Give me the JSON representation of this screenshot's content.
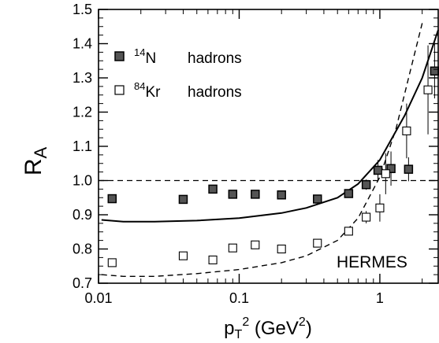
{
  "chart_data": {
    "type": "scatter",
    "x_scale": "log",
    "xlim": [
      0.01,
      2.6
    ],
    "ylim": [
      0.7,
      1.5
    ],
    "x_ticks": [
      0.01,
      0.1,
      1
    ],
    "x_tick_labels": [
      "0.01",
      "0.1",
      "1"
    ],
    "y_ticks": [
      0.7,
      0.8,
      0.9,
      1.0,
      1.1,
      1.2,
      1.3,
      1.4,
      1.5
    ],
    "y_tick_labels": [
      "0.7",
      "0.8",
      "0.9",
      "1.0",
      "1.1",
      "1.2",
      "1.3",
      "1.4",
      "1.5"
    ],
    "xlabel": {
      "base": "p",
      "sub": "T",
      "sup": "2",
      "unit_pre": " (GeV",
      "unit_sup": "2",
      "unit_post": ")"
    },
    "ylabel": {
      "base": "R",
      "sub": "A"
    },
    "reference_line": 1.0,
    "annotation": "HERMES",
    "legend": [
      {
        "mass": "14",
        "element": "N",
        "label": "hadrons",
        "marker": "filled-square"
      },
      {
        "mass": "84",
        "element": "Kr",
        "label": "hadrons",
        "marker": "open-square"
      }
    ],
    "series": [
      {
        "name": "14N hadrons",
        "marker": "filled-square",
        "points": [
          {
            "x": 0.0125,
            "y": 0.947,
            "err": 0.008
          },
          {
            "x": 0.04,
            "y": 0.945,
            "err": 0.008
          },
          {
            "x": 0.065,
            "y": 0.975,
            "err": 0.008
          },
          {
            "x": 0.09,
            "y": 0.96,
            "err": 0.008
          },
          {
            "x": 0.13,
            "y": 0.96,
            "err": 0.008
          },
          {
            "x": 0.2,
            "y": 0.958,
            "err": 0.008
          },
          {
            "x": 0.36,
            "y": 0.946,
            "err": 0.009
          },
          {
            "x": 0.6,
            "y": 0.962,
            "err": 0.01
          },
          {
            "x": 0.8,
            "y": 0.988,
            "err": 0.015
          },
          {
            "x": 0.97,
            "y": 1.03,
            "err": 0.03
          },
          {
            "x": 1.2,
            "y": 1.035,
            "err": 0.05
          },
          {
            "x": 1.6,
            "y": 1.033,
            "err": 0.035
          },
          {
            "x": 2.45,
            "y": 1.32,
            "err": 0.08
          }
        ]
      },
      {
        "name": "84Kr hadrons",
        "marker": "open-square",
        "points": [
          {
            "x": 0.0125,
            "y": 0.76,
            "err": 0.008
          },
          {
            "x": 0.04,
            "y": 0.78,
            "err": 0.008
          },
          {
            "x": 0.065,
            "y": 0.768,
            "err": 0.008
          },
          {
            "x": 0.09,
            "y": 0.803,
            "err": 0.008
          },
          {
            "x": 0.13,
            "y": 0.812,
            "err": 0.008
          },
          {
            "x": 0.2,
            "y": 0.8,
            "err": 0.008
          },
          {
            "x": 0.36,
            "y": 0.817,
            "err": 0.009
          },
          {
            "x": 0.6,
            "y": 0.852,
            "err": 0.012
          },
          {
            "x": 0.8,
            "y": 0.893,
            "err": 0.018
          },
          {
            "x": 1.0,
            "y": 0.92,
            "err": 0.04
          },
          {
            "x": 1.1,
            "y": 1.02,
            "err": 0.06
          },
          {
            "x": 1.55,
            "y": 1.145,
            "err": 0.08
          },
          {
            "x": 2.2,
            "y": 1.265,
            "err": 0.13
          }
        ]
      }
    ],
    "curves": [
      {
        "style": "solid",
        "points": [
          [
            0.0105,
            0.885
          ],
          [
            0.015,
            0.88
          ],
          [
            0.025,
            0.88
          ],
          [
            0.05,
            0.883
          ],
          [
            0.1,
            0.89
          ],
          [
            0.2,
            0.905
          ],
          [
            0.3,
            0.92
          ],
          [
            0.5,
            0.95
          ],
          [
            0.7,
            0.99
          ],
          [
            1.0,
            1.06
          ],
          [
            1.5,
            1.19
          ],
          [
            2.0,
            1.3
          ],
          [
            2.6,
            1.44
          ]
        ]
      },
      {
        "style": "dashed",
        "points": [
          [
            0.0105,
            0.725
          ],
          [
            0.015,
            0.72
          ],
          [
            0.025,
            0.72
          ],
          [
            0.05,
            0.728
          ],
          [
            0.1,
            0.74
          ],
          [
            0.2,
            0.76
          ],
          [
            0.3,
            0.78
          ],
          [
            0.5,
            0.825
          ],
          [
            0.7,
            0.89
          ],
          [
            1.0,
            1.01
          ],
          [
            1.3,
            1.15
          ],
          [
            1.6,
            1.3
          ],
          [
            2.0,
            1.46
          ]
        ]
      }
    ]
  }
}
